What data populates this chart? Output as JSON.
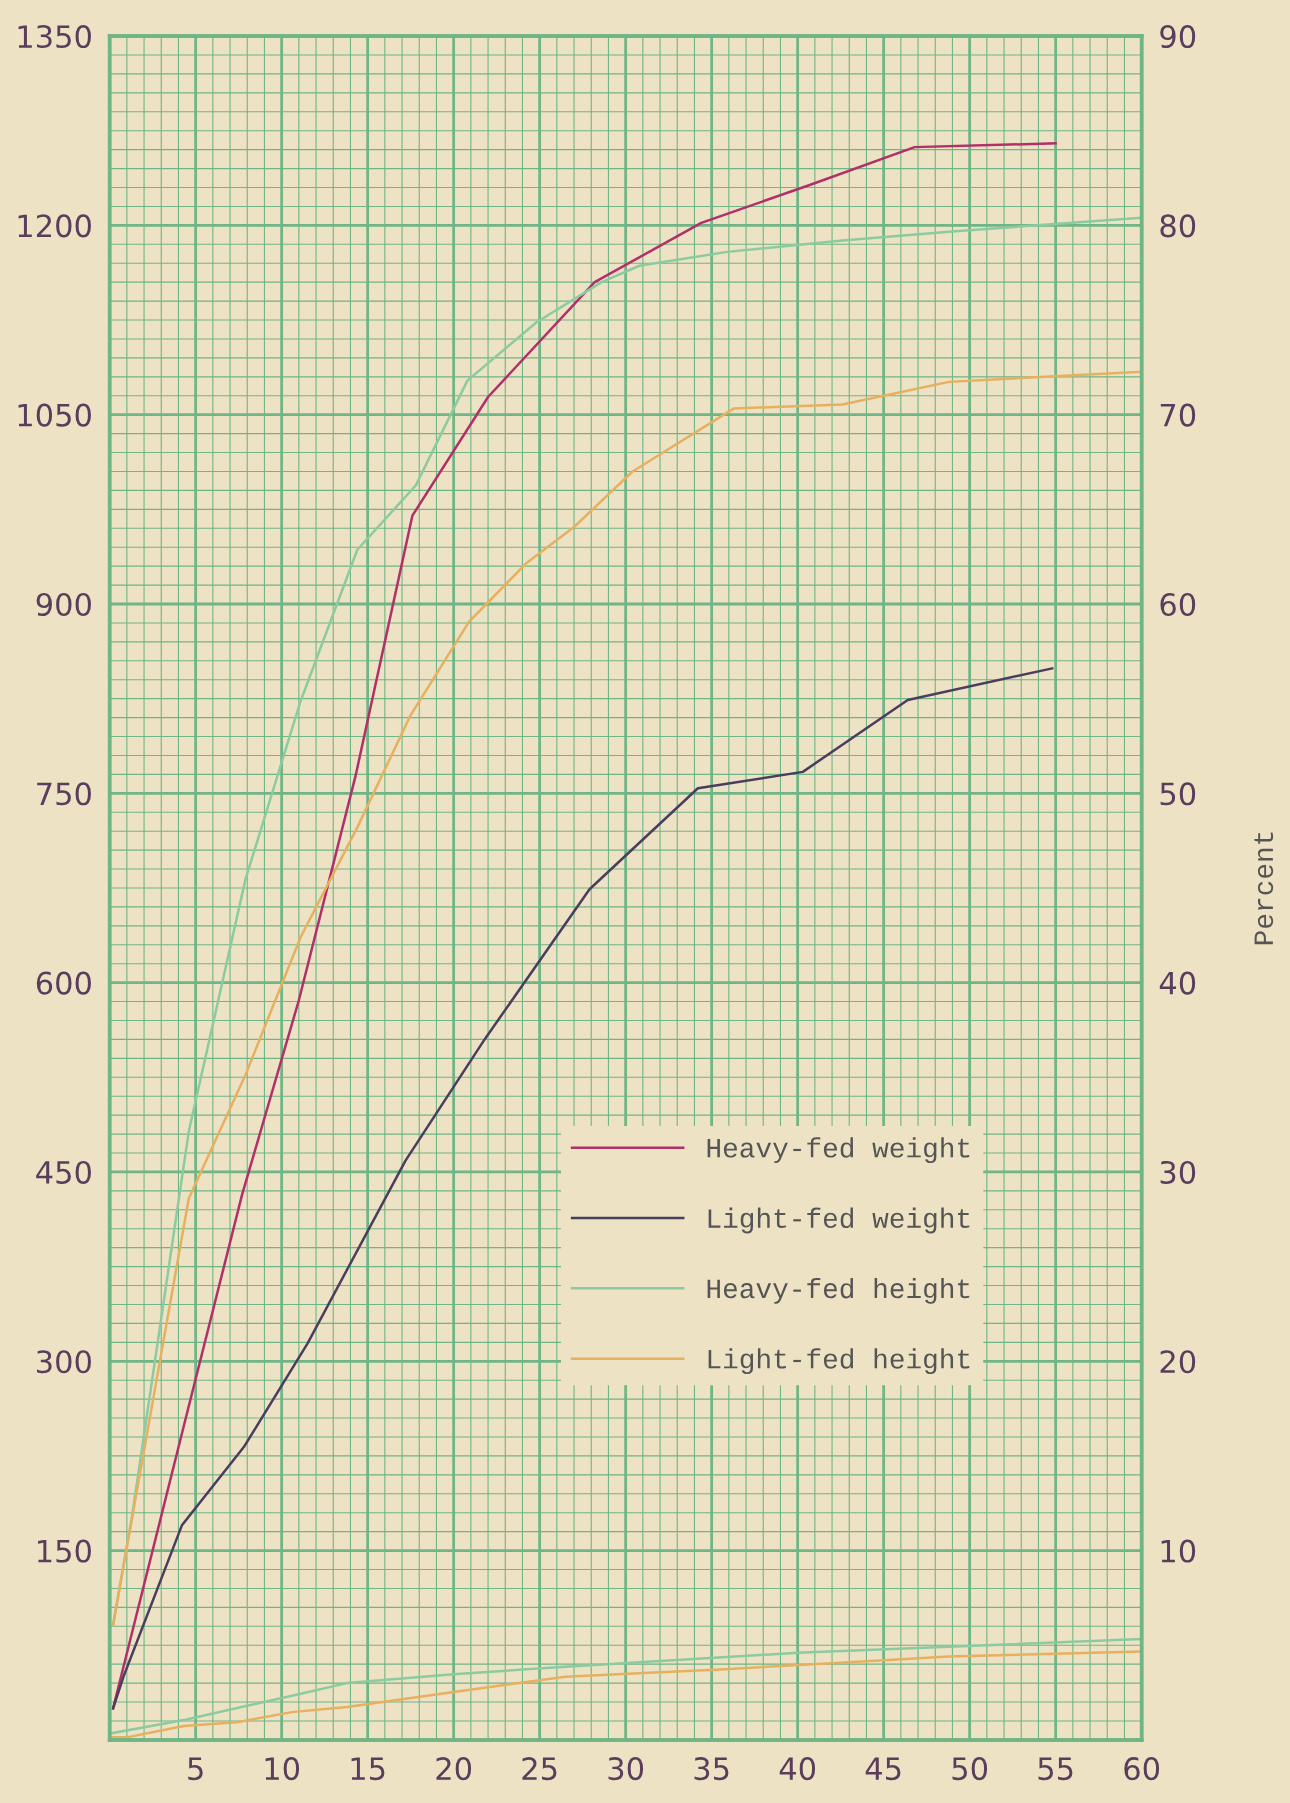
{
  "chart_data": {
    "type": "line",
    "y2label": "Percent",
    "xlim": [
      0,
      60
    ],
    "ylim": [
      0,
      1350
    ],
    "y2lim": [
      0,
      90
    ],
    "xticks": [
      {
        "value": 0,
        "label": null
      },
      {
        "value": 1,
        "label": null
      },
      {
        "value": 2,
        "label": null
      },
      {
        "value": 3,
        "label": null
      },
      {
        "value": 4,
        "label": null
      },
      5,
      {
        "value": 6,
        "label": null
      },
      {
        "value": 7,
        "label": null
      },
      {
        "value": 8,
        "label": null
      },
      {
        "value": 9,
        "label": null
      },
      10,
      {
        "value": 11,
        "label": null
      },
      {
        "value": 12,
        "label": null
      },
      {
        "value": 13,
        "label": null
      },
      {
        "value": 14,
        "label": null
      },
      15,
      {
        "value": 16,
        "label": null
      },
      {
        "value": 17,
        "label": null
      },
      {
        "value": 18,
        "label": null
      },
      {
        "value": 19,
        "label": null
      },
      20,
      {
        "value": 21,
        "label": null
      },
      {
        "value": 22,
        "label": null
      },
      {
        "value": 23,
        "label": null
      },
      {
        "value": 24,
        "label": null
      },
      25,
      {
        "value": 26,
        "label": null
      },
      {
        "value": 27,
        "label": null
      },
      {
        "value": 28,
        "label": null
      },
      {
        "value": 29,
        "label": null
      },
      30,
      {
        "value": 31,
        "label": null
      },
      {
        "value": 32,
        "label": null
      },
      {
        "value": 33,
        "label": null
      },
      {
        "value": 34,
        "label": null
      },
      35,
      {
        "value": 36,
        "label": null
      },
      {
        "value": 37,
        "label": null
      },
      {
        "value": 38,
        "label": null
      },
      {
        "value": 39,
        "label": null
      },
      40,
      {
        "value": 41,
        "label": null
      },
      {
        "value": 42,
        "label": null
      },
      {
        "value": 43,
        "label": null
      },
      {
        "value": 44,
        "label": null
      },
      45,
      {
        "value": 46,
        "label": null
      },
      {
        "value": 47,
        "label": null
      },
      {
        "value": 48,
        "label": null
      },
      {
        "value": 49,
        "label": null
      },
      50,
      {
        "value": 51,
        "label": null
      },
      {
        "value": 52,
        "label": null
      },
      {
        "value": 53,
        "label": null
      },
      {
        "value": 54,
        "label": null
      },
      55,
      {
        "value": 56,
        "label": null
      },
      {
        "value": 57,
        "label": null
      },
      {
        "value": 58,
        "label": null
      },
      {
        "value": 59,
        "label": null
      },
      60
    ],
    "yticks": [
      {
        "value": 0,
        "label": null
      },
      {
        "value": 15,
        "label": null
      },
      {
        "value": 30,
        "label": null
      },
      {
        "value": 45,
        "label": null
      },
      {
        "value": 60,
        "label": null
      },
      {
        "value": 75,
        "label": null
      },
      {
        "value": 90,
        "label": null
      },
      {
        "value": 105,
        "label": null
      },
      {
        "value": 120,
        "label": null
      },
      {
        "value": 135,
        "label": null
      },
      150,
      {
        "value": 165,
        "label": null
      },
      {
        "value": 180,
        "label": null
      },
      {
        "value": 195,
        "label": null
      },
      {
        "value": 210,
        "label": null
      },
      {
        "value": 225,
        "label": null
      },
      {
        "value": 240,
        "label": null
      },
      {
        "value": 255,
        "label": null
      },
      {
        "value": 270,
        "label": null
      },
      {
        "value": 285,
        "label": null
      },
      300,
      {
        "value": 315,
        "label": null
      },
      {
        "value": 330,
        "label": null
      },
      {
        "value": 345,
        "label": null
      },
      {
        "value": 360,
        "label": null
      },
      {
        "value": 375,
        "label": null
      },
      {
        "value": 390,
        "label": null
      },
      {
        "value": 405,
        "label": null
      },
      {
        "value": 420,
        "label": null
      },
      {
        "value": 435,
        "label": null
      },
      450,
      {
        "value": 465,
        "label": null
      },
      {
        "value": 480,
        "label": null
      },
      {
        "value": 495,
        "label": null
      },
      {
        "value": 510,
        "label": null
      },
      {
        "value": 525,
        "label": null
      },
      {
        "value": 540,
        "label": null
      },
      {
        "value": 555,
        "label": null
      },
      {
        "value": 570,
        "label": null
      },
      {
        "value": 585,
        "label": null
      },
      600,
      {
        "value": 615,
        "label": null
      },
      {
        "value": 630,
        "label": null
      },
      {
        "value": 645,
        "label": null
      },
      {
        "value": 660,
        "label": null
      },
      {
        "value": 675,
        "label": null
      },
      {
        "value": 690,
        "label": null
      },
      {
        "value": 705,
        "label": null
      },
      {
        "value": 720,
        "label": null
      },
      {
        "value": 735,
        "label": null
      },
      750,
      {
        "value": 765,
        "label": null
      },
      {
        "value": 780,
        "label": null
      },
      {
        "value": 795,
        "label": null
      },
      {
        "value": 810,
        "label": null
      },
      {
        "value": 825,
        "label": null
      },
      {
        "value": 840,
        "label": null
      },
      {
        "value": 855,
        "label": null
      },
      {
        "value": 870,
        "label": null
      },
      {
        "value": 885,
        "label": null
      },
      900,
      {
        "value": 915,
        "label": null
      },
      {
        "value": 930,
        "label": null
      },
      {
        "value": 945,
        "label": null
      },
      {
        "value": 960,
        "label": null
      },
      {
        "value": 975,
        "label": null
      },
      {
        "value": 990,
        "label": null
      },
      {
        "value": 1005,
        "label": null
      },
      {
        "value": 1020,
        "label": null
      },
      {
        "value": 1035,
        "label": null
      },
      1050,
      {
        "value": 1065,
        "label": null
      },
      {
        "value": 1080,
        "label": null
      },
      {
        "value": 1095,
        "label": null
      },
      {
        "value": 1110,
        "label": null
      },
      {
        "value": 1125,
        "label": null
      },
      {
        "value": 1140,
        "label": null
      },
      {
        "value": 1155,
        "label": null
      },
      {
        "value": 1170,
        "label": null
      },
      {
        "value": 1185,
        "label": null
      },
      1200,
      {
        "value": 1215,
        "label": null
      },
      {
        "value": 1230,
        "label": null
      },
      {
        "value": 1245,
        "label": null
      },
      {
        "value": 1260,
        "label": null
      },
      {
        "value": 1275,
        "label": null
      },
      {
        "value": 1290,
        "label": null
      },
      {
        "value": 1305,
        "label": null
      },
      {
        "value": 1320,
        "label": null
      },
      {
        "value": 1335,
        "label": null
      },
      1350
    ],
    "y2ticks": [
      {
        "value": 0,
        "label": null
      },
      10,
      20,
      30,
      40,
      50,
      60,
      70,
      80,
      90
    ],
    "grid": true,
    "legend": "lower right",
    "marker": "none",
    "line_style": "solid",
    "series": [
      {
        "name": "Heavy-fed weight",
        "color": "#b0306a",
        "x": [
          0.2,
          4.5,
          7.7,
          11,
          14.3,
          17.6,
          22,
          28.2,
          34.4,
          40.7,
          46.8,
          55
        ],
        "values": [
          25,
          259,
          432,
          586,
          764,
          970,
          1064,
          1155,
          1202,
          1232,
          1262,
          1265
        ]
      },
      {
        "name": "Light-fed weight",
        "color": "#4a3d5e",
        "x": [
          0.2,
          0.8,
          4.2,
          7.8,
          11.5,
          17.2,
          21.8,
          27.9,
          34.2,
          40.3,
          46.4,
          54.8
        ],
        "values": [
          25,
          50,
          170,
          232,
          314,
          459,
          555,
          674,
          754,
          767,
          824,
          849
        ]
      },
      {
        "name": "Heavy-fed height",
        "color": "#8ccaa0",
        "x": [
          0.2,
          1.3,
          4.6,
          7.9,
          11.1,
          14.4,
          17.8,
          20.8,
          24.8,
          28.6,
          30.8,
          35.9,
          42.6,
          48.8,
          60
        ],
        "values": [
          91,
          177,
          482,
          682,
          823,
          943,
          994,
          1077,
          1123,
          1155,
          1168,
          1179,
          1188,
          1195,
          1206
        ]
      },
      {
        "name": "Light-fed height",
        "color": "#e6b060",
        "x": [
          0.2,
          4.6,
          7.9,
          11.1,
          14.4,
          17.5,
          20.9,
          24.2,
          27,
          30.4,
          36.3,
          42.6,
          48.8,
          60
        ],
        "values": [
          91,
          429,
          527,
          636,
          723,
          812,
          886,
          932,
          961,
          1005,
          1055,
          1058,
          1076,
          1084
        ]
      },
      {
        "color": "#8ccaa0",
        "x": [
          0,
          4.4,
          10.6,
          13.8,
          20,
          26.5,
          40,
          60
        ],
        "values": [
          5,
          16,
          35,
          45,
          52,
          58,
          69,
          80
        ]
      },
      {
        "color": "#e6b060",
        "x": [
          0,
          1,
          4.3,
          7.4,
          10.6,
          13.8,
          20,
          26.5,
          29.5,
          35.8,
          42.2,
          48.8,
          60
        ],
        "values": [
          2,
          2,
          11,
          14,
          22,
          26,
          38,
          50,
          52,
          56,
          61,
          66,
          70
        ]
      }
    ]
  }
}
